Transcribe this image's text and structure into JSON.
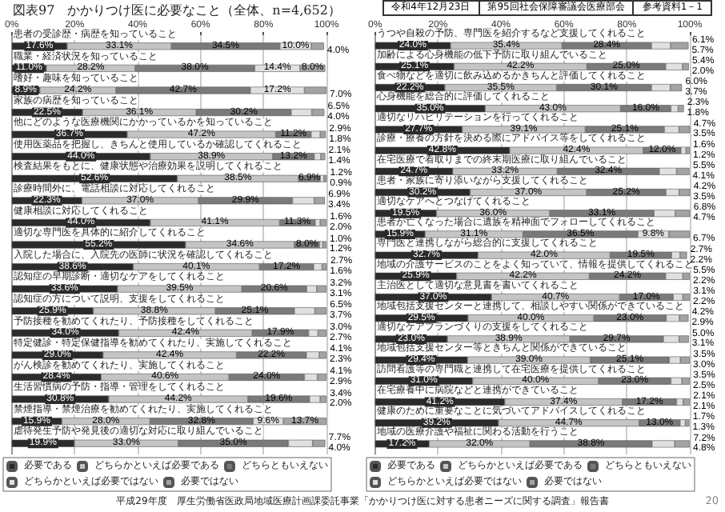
{
  "chart_data": [
    {
      "type": "bar",
      "orientation": "horizontal",
      "stacked": true,
      "title": "図表97　かかりつけ医に必要なこと（全体、n=4,652）",
      "annotations": [
        "令和4年12月23日",
        "第95回社会保障審議会医療部会",
        "参考資料1－1",
        "平成29年度　厚生労働省医政局地域医療計画課委託事業「かかりつけ医に対する患者ニーズに関する調査」報告書",
        "20"
      ],
      "categories": [
        "患者の受診歴・病歴を知っていること",
        "職業・経済状況を知っていること",
        "嗜好・趣味を知っていること",
        "家族の病歴を知っていること",
        "他にどのような医療機関にかかっているかを知っていること",
        "使用医薬品を把握し、きちんと使用しているか確認してくれること",
        "検査結果をもとに、健康状態や治療効果を説明してくれること",
        "診療時間外に、電話相談に対応してくれること",
        "健康相談に対応してくれること",
        "適切な専門医を具体的に紹介してくれること",
        "入院した場合に、入院先の医師に状況を確認してくれること",
        "認知症の早期診断・適切なケアをしてくれること",
        "認知症の方について説明、支援をしてくれること",
        "予防接種を勧めてくれたり、予防接種をしてくれること",
        "特定健診・特定保健指導を勧めてくれたり、実施してくれること",
        "がん検診を勧めてくれたり、実施してくれること",
        "生活習慣病の予防・指導・管理をしてくれること",
        "禁煙指導・禁煙治療を勧めてくれたり、実施してくれること",
        "虐待発生予防や発見後の適切な対応に取り組んでいること"
      ],
      "xlim": [
        0,
        100
      ],
      "xticks": [
        {
          "value": 0,
          "label": "0%"
        },
        {
          "value": 20,
          "label": "20%"
        },
        {
          "value": 40,
          "label": "40%"
        },
        {
          "value": 60,
          "label": "60%"
        },
        {
          "value": 80,
          "label": "80%"
        },
        {
          "value": 100,
          "label": "100%"
        }
      ],
      "grid": "x",
      "legend": "bottom",
      "series": [
        {
          "name": "必要である",
          "color": "#2b2b2b",
          "values": [
            17.6,
            11.0,
            8.9,
            22.5,
            36.7,
            44.0,
            52.6,
            22.3,
            44.0,
            55.2,
            38.6,
            33.6,
            25.9,
            34.0,
            29.0,
            28.4,
            30.8,
            15.9,
            19.9
          ],
          "value_labels": [
            "17.6%",
            "11.0%",
            "8.9%",
            "22.5%",
            "36.7%",
            "44.0%",
            "52.6%",
            "22.3%",
            "44.0%",
            "55.2%",
            "38.6%",
            "33.6%",
            "25.9%",
            "34.0%",
            "29.0%",
            "28.4%",
            "30.8%",
            "15.9%",
            "19.9%"
          ]
        },
        {
          "name": "どちらかといえば必要である",
          "color": "#c4c4c4",
          "values": [
            33.1,
            28.2,
            24.2,
            36.1,
            47.2,
            38.9,
            38.5,
            37.0,
            41.1,
            34.6,
            40.1,
            39.5,
            38.8,
            42.4,
            42.4,
            40.6,
            44.2,
            28.0,
            33.0
          ],
          "value_labels": [
            "33.1%",
            "28.2%",
            "24.2%",
            "36.1%",
            "47.2%",
            "38.9%",
            "38.5%",
            "37.0%",
            "41.1%",
            "34.6%",
            "40.1%",
            "39.5%",
            "38.8%",
            "42.4%",
            "42.4%",
            "40.6%",
            "44.2%",
            "28.0%",
            "33.0%"
          ]
        },
        {
          "name": "どちらともいえない",
          "color": "#7a7a7a",
          "values": [
            34.5,
            38.0,
            42.7,
            30.2,
            11.2,
            13.2,
            6.9,
            29.9,
            11.3,
            8.0,
            17.2,
            20.6,
            25.1,
            17.9,
            22.2,
            24.0,
            19.6,
            32.8,
            35.0
          ],
          "value_labels": [
            "34.5%",
            "38.0%",
            "42.7%",
            "30.2%",
            "11.2%",
            "13.2%",
            "6.9%",
            "29.9%",
            "11.3%",
            "8.0%",
            "17.2%",
            "20.6%",
            "25.1%",
            "17.9%",
            "22.2%",
            "24.0%",
            "19.6%",
            "32.8%",
            "35.0%"
          ]
        },
        {
          "name": "どちらかといえば必要ではない",
          "color": "#e0e0e0",
          "values": [
            10.0,
            14.4,
            17.2,
            6.5,
            2.9,
            2.1,
            1.2,
            6.9,
            1.6,
            1.0,
            2.7,
            3.2,
            6.5,
            3.0,
            4.1,
            4.1,
            3.4,
            9.6,
            7.7
          ],
          "value_labels": [
            "10.0%",
            "14.4%",
            "17.2%",
            "6.5%",
            "2.9%",
            "2.1%",
            "1.2%",
            "6.9%",
            "1.6%",
            "1.0%",
            "2.7%",
            "3.2%",
            "6.5%",
            "3.0%",
            "4.1%",
            "4.1%",
            "3.4%",
            "9.6%",
            "7.7%"
          ]
        },
        {
          "name": "必要ではない",
          "color": "#a3a3a3",
          "values": [
            4.0,
            8.0,
            7.0,
            4.0,
            1.8,
            1.4,
            0.9,
            3.4,
            2.0,
            1.2,
            1.6,
            3.1,
            3.7,
            2.7,
            2.3,
            2.9,
            2.0,
            13.7,
            4.0
          ],
          "value_labels": [
            "4.0%",
            "8.0%",
            "7.0%",
            "4.0%",
            "1.8%",
            "1.4%",
            "0.9%",
            "3.4%",
            "2.0%",
            "1.2%",
            "1.6%",
            "3.1%",
            "3.7%",
            "2.7%",
            "2.3%",
            "2.9%",
            "2.0%",
            "13.7%",
            "4.0%"
          ]
        }
      ]
    },
    {
      "type": "bar",
      "orientation": "horizontal",
      "stacked": true,
      "categories": [
        "うつや自殺の予防、専門医を紹介するなど支援してくれること",
        "加齢による心身機能の低下予防に取り組んでいること",
        "食べ物などを適切に飲み込めるかきちんと評価してくれること",
        "心身機能を総合的に評価してくれること",
        "適切なリハビリテーションを行ってくれること",
        "診療・療養の方針を決める際にアドバイス等をしてくれること",
        "在宅医療で看取りまでの終末期医療に取り組んでいること",
        "患者・家族に寄り添いながら支援してくれること",
        "適切なケアへとつなげてくれること",
        "患者が亡くなった場合に遺族を精神面でフォローしてくれること",
        "専門医と連携しながら総合的に支援してくれること",
        "地域の介護サービスのことをよく知っていて、情報を提供してくれること",
        "主治医として適切な意見書を書いてくれること",
        "地域包括支援センターと連携して、相談しやすい関係ができていること",
        "適切なケアプランづくりの支援をしてくれること",
        "地域包括支援センター等ときちんと関係ができていること",
        "訪問看護等の専門職と連携して在宅医療を提供してくれること",
        "在宅療養中に病院などと連携ができていること",
        "健康のために重要なことに気づいてアドバイスしてくれること",
        "地域の医療介護や福祉に関わる活動を行うこと"
      ],
      "xlim": [
        0,
        100
      ],
      "xticks": [
        {
          "value": 0,
          "label": "0%"
        },
        {
          "value": 20,
          "label": "20%"
        },
        {
          "value": 40,
          "label": "40%"
        },
        {
          "value": 60,
          "label": "60%"
        },
        {
          "value": 80,
          "label": "80%"
        },
        {
          "value": 100,
          "label": "100%"
        }
      ],
      "grid": "x",
      "legend": "bottom",
      "series": [
        {
          "name": "必要である",
          "color": "#2b2b2b",
          "values": [
            24.0,
            25.1,
            22.2,
            35.0,
            27.7,
            42.8,
            24.7,
            30.2,
            19.5,
            15.9,
            32.7,
            25.9,
            37.0,
            29.5,
            23.0,
            29.4,
            31.0,
            41.2,
            39.2,
            17.2
          ],
          "value_labels": [
            "24.0%",
            "25.1%",
            "22.2%",
            "35.0%",
            "27.7%",
            "42.8%",
            "24.7%",
            "30.2%",
            "19.5%",
            "15.9%",
            "32.7%",
            "25.9%",
            "37.0%",
            "29.5%",
            "23.0%",
            "29.4%",
            "31.0%",
            "41.2%",
            "39.2%",
            "17.2%"
          ]
        },
        {
          "name": "どちらかといえば必要である",
          "color": "#c4c4c4",
          "values": [
            35.4,
            42.2,
            35.5,
            43.0,
            39.1,
            42.4,
            33.2,
            37.0,
            36.0,
            31.1,
            42.0,
            42.2,
            40.7,
            40.0,
            38.9,
            39.0,
            40.0,
            37.4,
            44.7,
            32.0
          ],
          "value_labels": [
            "35.4%",
            "42.2%",
            "35.5%",
            "43.0%",
            "39.1%",
            "42.4%",
            "33.2%",
            "37.0%",
            "36.0%",
            "31.1%",
            "42.0%",
            "42.2%",
            "40.7%",
            "40.0%",
            "38.9%",
            "39.0%",
            "40.0%",
            "37.4%",
            "44.7%",
            "32.0%"
          ]
        },
        {
          "name": "どちらともいえない",
          "color": "#7a7a7a",
          "values": [
            28.4,
            25.0,
            30.1,
            16.0,
            25.1,
            12.0,
            32.4,
            25.2,
            33.1,
            36.5,
            19.5,
            24.2,
            17.0,
            23.0,
            29.7,
            25.1,
            23.0,
            17.2,
            13.0,
            38.8
          ],
          "value_labels": [
            "28.4%",
            "25.0%",
            "30.1%",
            "16.0%",
            "25.1%",
            "12.0%",
            "32.4%",
            "25.2%",
            "33.1%",
            "36.5%",
            "19.5%",
            "24.2%",
            "17.0%",
            "23.0%",
            "29.7%",
            "25.1%",
            "23.0%",
            "17.2%",
            "13.0%",
            "38.8%"
          ]
        },
        {
          "name": "どちらかといえば必要ではない",
          "color": "#e0e0e0",
          "values": [
            6.1,
            5.4,
            6.0,
            2.3,
            4.7,
            1.6,
            5.5,
            4.2,
            6.8,
            9.8,
            2.7,
            5.5,
            3.1,
            4.2,
            5.0,
            3.5,
            3.5,
            2.1,
            1.7,
            7.2
          ],
          "value_labels": [
            "6.1%",
            "5.4%",
            "6.0%",
            "2.3%",
            "4.7%",
            "1.6%",
            "5.5%",
            "4.2%",
            "6.8%",
            "9.8%",
            "2.7%",
            "5.5%",
            "3.1%",
            "4.2%",
            "5.0%",
            "3.5%",
            "3.5%",
            "2.1%",
            "1.7%",
            "7.2%"
          ]
        },
        {
          "name": "必要ではない",
          "color": "#a3a3a3",
          "values": [
            5.7,
            2.0,
            3.7,
            1.8,
            3.5,
            1.2,
            4.1,
            3.5,
            4.7,
            6.7,
            2.2,
            2.2,
            2.2,
            2.9,
            3.1,
            3.0,
            2.5,
            2.1,
            1.3,
            4.8
          ],
          "value_labels": [
            "5.7%",
            "2.0%",
            "3.7%",
            "1.8%",
            "3.5%",
            "1.2%",
            "4.1%",
            "3.5%",
            "4.7%",
            "6.7%",
            "2.2%",
            "2.2%",
            "2.2%",
            "2.9%",
            "3.1%",
            "3.0%",
            "2.5%",
            "2.1%",
            "1.3%",
            "4.8%"
          ]
        }
      ]
    }
  ]
}
